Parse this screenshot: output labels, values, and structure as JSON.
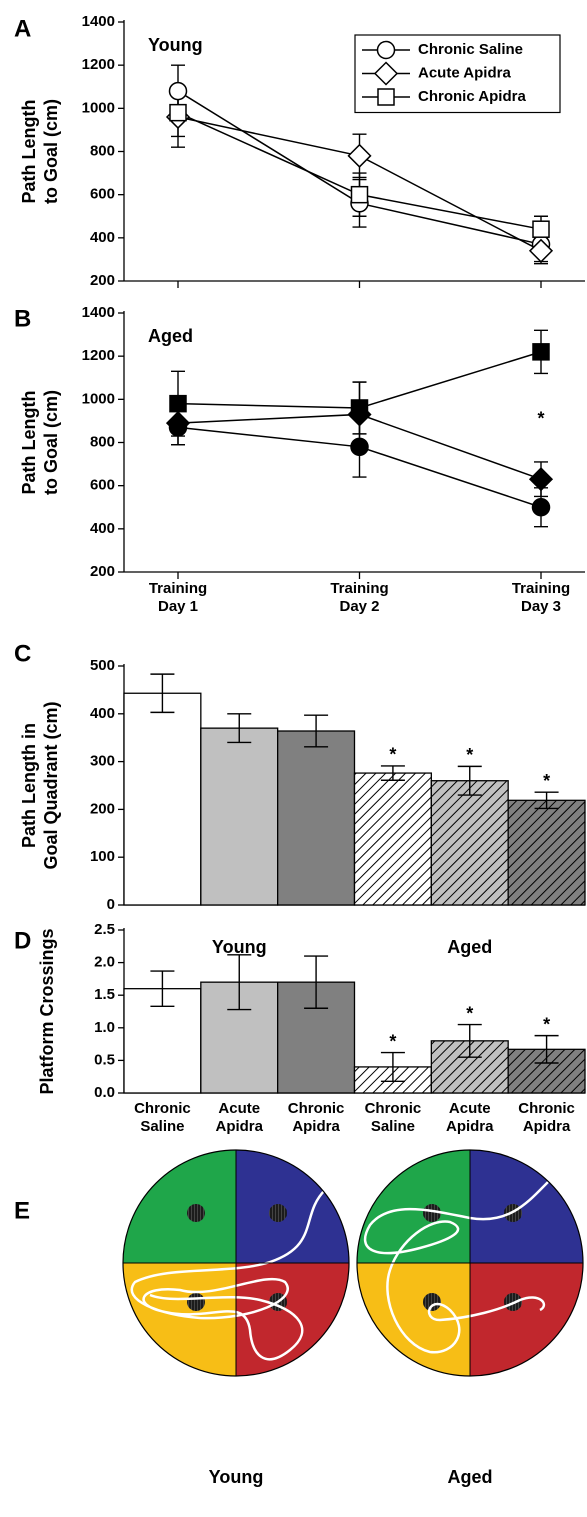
{
  "chart_data": [
    {
      "type": "line",
      "panel": "A",
      "annotation": "Young",
      "ylabel": "Path Length to Goal (cm)",
      "categories": [
        null,
        null,
        null
      ],
      "series": [
        {
          "name": "Chronic Saline",
          "color": "#000000",
          "marker": "circle",
          "marker_fill": "#ffffff",
          "values": [
            1080,
            560,
            370
          ],
          "errors": [
            120,
            110,
            80
          ]
        },
        {
          "name": "Acute Apidra",
          "color": "#000000",
          "marker": "diamond",
          "marker_fill": "#ffffff",
          "values": [
            960,
            780,
            340
          ],
          "errors": [
            140,
            100,
            60
          ]
        },
        {
          "name": "Chronic Apidra",
          "color": "#000000",
          "marker": "square",
          "marker_fill": "#ffffff",
          "values": [
            980,
            600,
            440
          ],
          "errors": [
            110,
            100,
            60
          ]
        }
      ],
      "ylim": [
        200,
        1400
      ],
      "yticks": [
        200,
        400,
        600,
        800,
        1000,
        1200,
        1400
      ],
      "legend": "upper right"
    },
    {
      "type": "line",
      "panel": "B",
      "annotation": "Aged",
      "ylabel": "Path Length to Goal (cm)",
      "categories": [
        "Training Day 1",
        "Training Day 2",
        "Training Day 3"
      ],
      "series": [
        {
          "color": "#000000",
          "marker": "circle",
          "marker_fill": "#000000",
          "values": [
            870,
            780,
            500
          ],
          "errors": [
            80,
            140,
            90
          ]
        },
        {
          "color": "#000000",
          "marker": "diamond",
          "marker_fill": "#000000",
          "values": [
            890,
            930,
            630
          ],
          "errors": [
            100,
            150,
            80
          ]
        },
        {
          "color": "#000000",
          "marker": "square",
          "marker_fill": "#000000",
          "values": [
            980,
            960,
            1220
          ],
          "errors": [
            150,
            120,
            100
          ]
        }
      ],
      "significance": [
        null,
        null,
        "*"
      ],
      "ylim": [
        200,
        1400
      ],
      "yticks": [
        200,
        400,
        600,
        800,
        1000,
        1200,
        1400
      ]
    },
    {
      "type": "bar",
      "panel": "C",
      "ylabel": "Path Length in Goal Quadrant (cm)",
      "categories": [
        null,
        null,
        null,
        null,
        null,
        null
      ],
      "values": [
        443,
        370,
        364,
        276,
        260,
        219
      ],
      "errors": [
        40,
        30,
        33,
        15,
        30,
        17
      ],
      "colors": [
        "#ffffff",
        "#c0c0c0",
        "#808080",
        "#ffffff",
        "#c0c0c0",
        "#808080"
      ],
      "hatched": [
        false,
        false,
        false,
        true,
        true,
        true
      ],
      "significance": [
        null,
        null,
        null,
        "*",
        "*",
        "*"
      ],
      "ylim": [
        0,
        500
      ],
      "yticks": [
        0,
        100,
        200,
        300,
        400,
        500
      ]
    },
    {
      "type": "bar",
      "panel": "D",
      "ylabel": "Platform Crossings",
      "group_labels": [
        "Young",
        "Aged"
      ],
      "categories": [
        "Chronic Saline",
        "Acute Apidra",
        "Chronic Apidra",
        "Chronic Saline",
        "Acute Apidra",
        "Chronic Apidra"
      ],
      "values": [
        1.6,
        1.7,
        1.7,
        0.4,
        0.8,
        0.67
      ],
      "errors": [
        0.27,
        0.42,
        0.4,
        0.22,
        0.25,
        0.21
      ],
      "colors": [
        "#ffffff",
        "#c0c0c0",
        "#808080",
        "#ffffff",
        "#c0c0c0",
        "#808080"
      ],
      "hatched": [
        false,
        false,
        false,
        true,
        true,
        true
      ],
      "significance": [
        null,
        null,
        null,
        "*",
        "*",
        "*"
      ],
      "ylim": [
        0,
        2.5
      ],
      "yticks": [
        {
          "value": 0,
          "label": "0.0"
        },
        0.5,
        {
          "value": 1,
          "label": "1.0"
        },
        1.5,
        {
          "value": 2,
          "label": "2.0"
        },
        2.5
      ]
    }
  ],
  "panel_e": {
    "panel": "E",
    "labels": [
      "Young",
      "Aged"
    ]
  }
}
